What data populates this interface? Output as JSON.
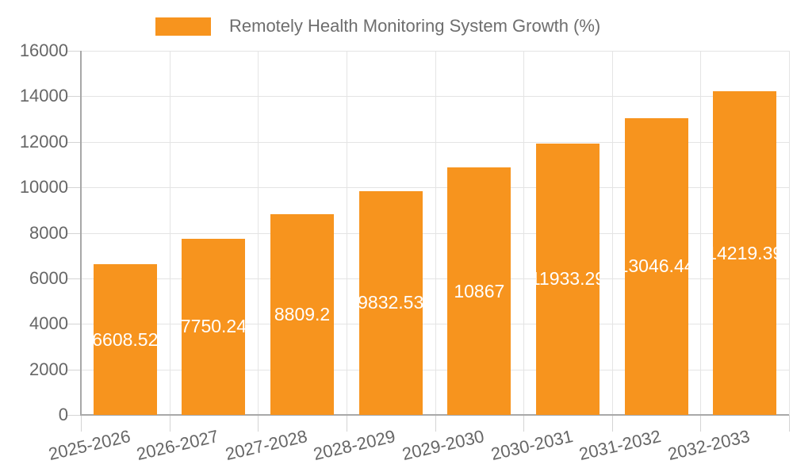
{
  "chart_data": {
    "type": "bar",
    "title": "Remotely Health Monitoring System Growth (%)",
    "xlabel": "",
    "ylabel": "",
    "categories": [
      "2025-2026",
      "2026-2027",
      "2027-2028",
      "2028-2029",
      "2029-2030",
      "2030-2031",
      "2031-2032",
      "2032-2033"
    ],
    "values": [
      6608.52,
      7750.24,
      8809.2,
      9832.53,
      10867,
      11933.29,
      13046.44,
      14219.39
    ],
    "bar_labels": [
      "6608.52",
      "7750.24",
      "8809.2",
      "9832.53",
      "10867",
      "11933.29",
      "13046.44",
      "14219.39"
    ],
    "y_ticks": [
      0,
      2000,
      4000,
      6000,
      8000,
      10000,
      12000,
      14000,
      16000
    ],
    "ylim": [
      0,
      16000
    ],
    "grid": true,
    "legend_position": "top",
    "bar_label_position": "center-inside",
    "colors": {
      "bar": "#f7941e",
      "bar_label": "#ffffff",
      "axis_text": "#666666",
      "legend_text": "#6e6e6e",
      "grid_line": "#e4e4e4",
      "tick_line": "#d4d4d4",
      "axis_line": "#a8a8a8",
      "background": "#ffffff"
    }
  }
}
